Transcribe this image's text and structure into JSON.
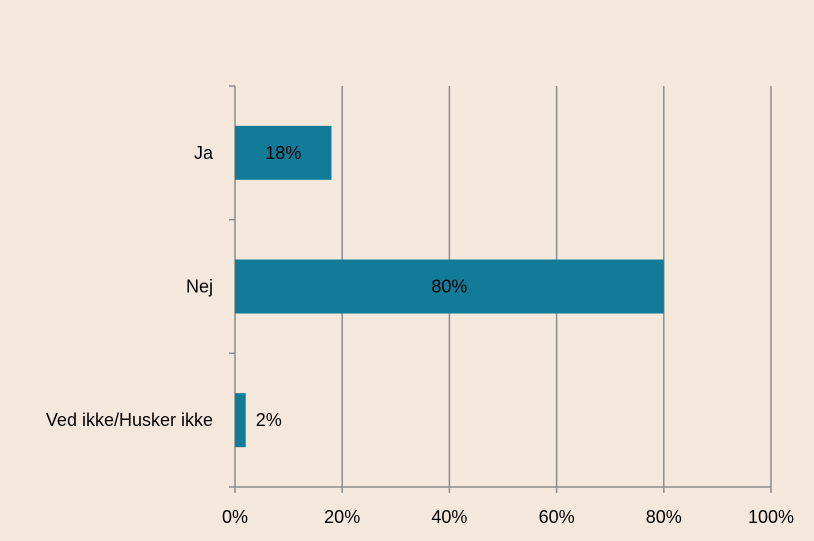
{
  "chart_data": {
    "type": "bar",
    "orientation": "horizontal",
    "categories": [
      "Ja",
      "Nej",
      "Ved ikke/Husker ikke"
    ],
    "values": [
      18,
      80,
      2
    ],
    "data_labels": [
      "18%",
      "80%",
      "2%"
    ],
    "xlim": [
      0,
      100
    ],
    "x_ticks": [
      0,
      20,
      40,
      60,
      80,
      100
    ],
    "x_tick_labels": [
      "0%",
      "20%",
      "40%",
      "60%",
      "80%",
      "100%"
    ],
    "grid": "vertical",
    "bar_color": "#127c98",
    "background_color": "#f4e8dc",
    "grid_color": "#8c8c8c"
  }
}
